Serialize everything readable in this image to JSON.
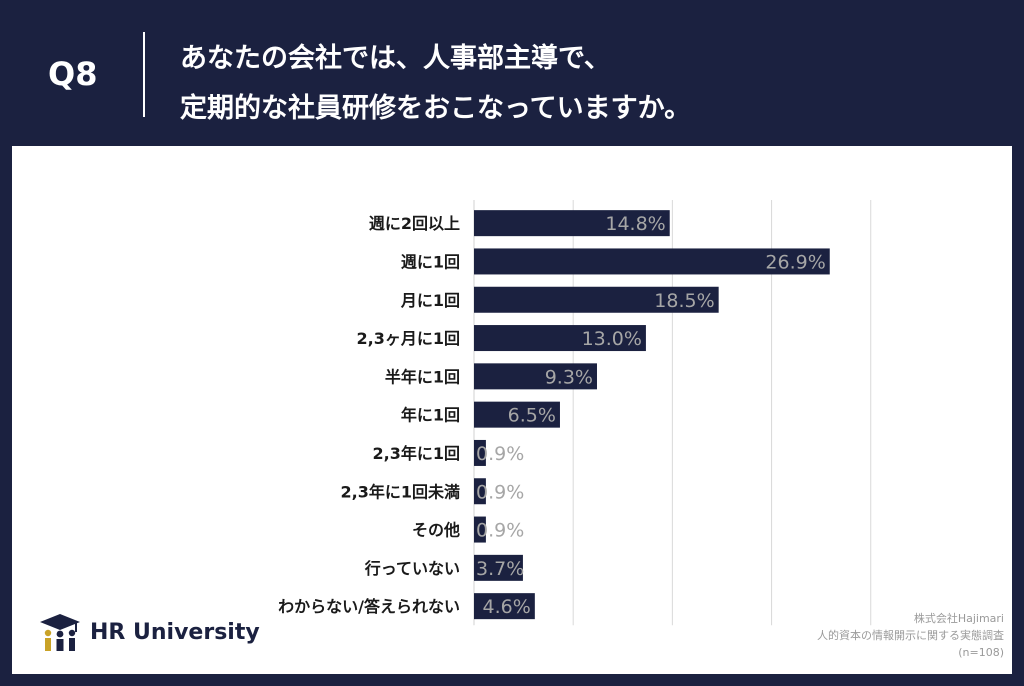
{
  "header": {
    "question_number": "Q8",
    "question_line1": "あなたの会社では、人事部主導で、",
    "question_line2": "定期的な社員研修をおこなっていますか。"
  },
  "logo": {
    "text": "HR University",
    "icon": "graduation-cap-people-icon"
  },
  "source": {
    "company": "株式会社Hajimari",
    "survey": "人的資本の情報開示に関する実態調査",
    "sample": "(n=108)"
  },
  "colors": {
    "header_bg": "#1b2140",
    "bar": "#1b2140",
    "value_label": "#a6a6a6",
    "gridline": "#d9d9d9",
    "logo_gold": "#c9a227"
  },
  "chart_data": {
    "type": "bar",
    "orientation": "horizontal",
    "categories": [
      "週に2回以上",
      "週に1回",
      "月に1回",
      "2,3ヶ月に1回",
      "半年に1回",
      "年に1回",
      "2,3年に1回",
      "2,3年に1回未満",
      "その他",
      "行っていない",
      "わからない/答えられない"
    ],
    "values": [
      14.8,
      26.9,
      18.5,
      13.0,
      9.3,
      6.5,
      0.9,
      0.9,
      0.9,
      3.7,
      4.6
    ],
    "value_labels": [
      "14.8%",
      "26.9%",
      "18.5%",
      "13.0%",
      "9.3%",
      "6.5%",
      "0.9%",
      "0.9%",
      "0.9%",
      "3.7%",
      "4.6%"
    ],
    "xlim": [
      0,
      40
    ],
    "gridlines": [
      0,
      7.5,
      15,
      22.5,
      30
    ],
    "grid": true,
    "legend": "none"
  }
}
